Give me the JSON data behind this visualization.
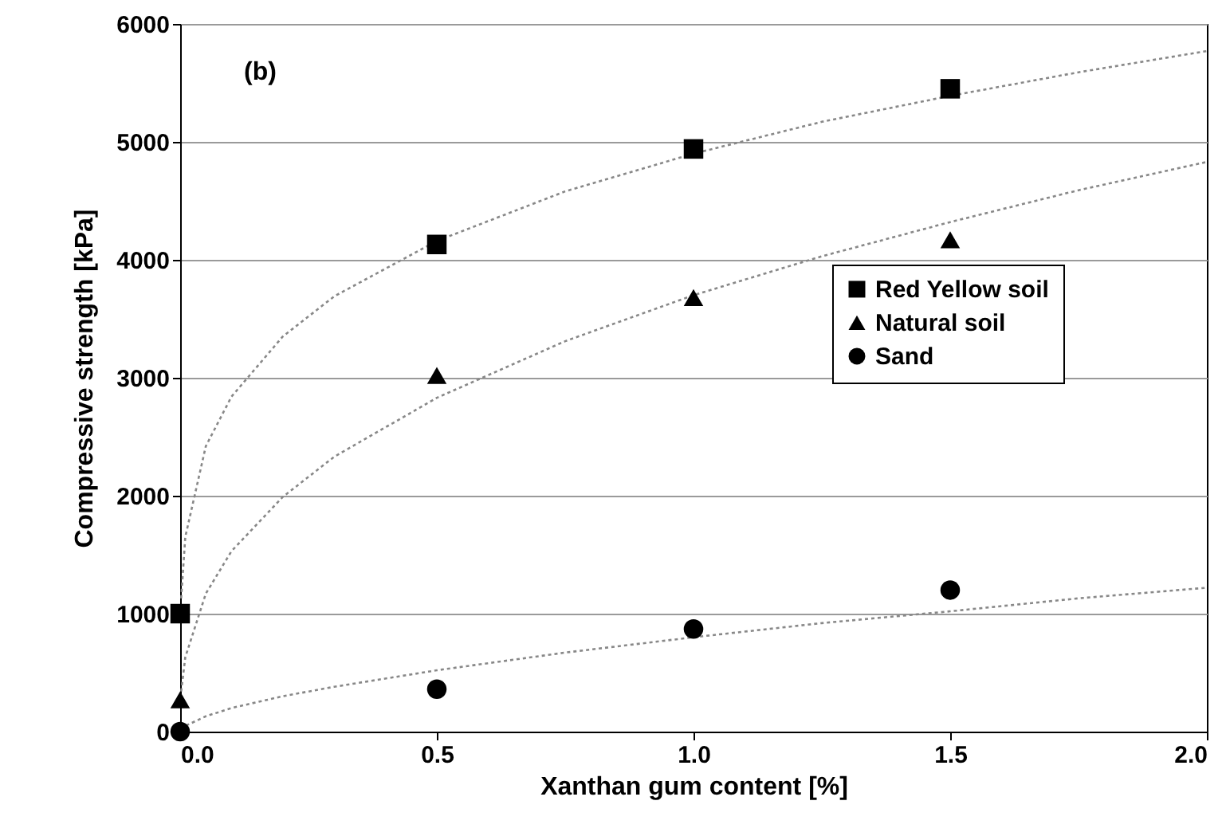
{
  "chart_data": {
    "type": "scatter",
    "xlabel": "Xanthan gum content [%]",
    "ylabel": "Compressive strength [kPa]",
    "annotations": [
      "(b)"
    ],
    "xlim": [
      0,
      2
    ],
    "xticks": [
      {
        "value": 0,
        "label": "0.0"
      },
      {
        "value": 0.5,
        "label": "0.5"
      },
      {
        "value": 1,
        "label": "1.0"
      },
      {
        "value": 1.5,
        "label": "1.5"
      },
      {
        "value": 2,
        "label": "2.0"
      }
    ],
    "ylim": [
      0,
      6000
    ],
    "yticks": [
      0,
      1000,
      2000,
      3000,
      4000,
      5000,
      6000
    ],
    "grid": "y",
    "legend": "right",
    "x": [
      0,
      0.5,
      1,
      1.5
    ],
    "series": [
      {
        "name": "Red Yellow soil",
        "color": "#000000",
        "marker": "square",
        "values": [
          1000,
          4130,
          4940,
          5450
        ]
      },
      {
        "name": "Natural soil",
        "color": "#000000",
        "marker": "triangle",
        "values": [
          270,
          3020,
          3680,
          4170
        ]
      },
      {
        "name": "Sand",
        "color": "#000000",
        "marker": "circle",
        "values": [
          0,
          360,
          870,
          1200
        ]
      },
      {
        "type": "line",
        "color": "#888888",
        "line_style": "dotted",
        "marker": "none",
        "x": [
          0.002,
          0.01,
          0.05,
          0.1,
          0.2,
          0.3,
          0.5,
          0.75,
          1,
          1.25,
          1.5,
          1.75,
          2
        ],
        "values": [
          1130,
          1650,
          2420,
          2840,
          3350,
          3690,
          4160,
          4580,
          4900,
          5170,
          5390,
          5590,
          5770
        ]
      },
      {
        "type": "line",
        "color": "#888888",
        "line_style": "dotted",
        "marker": "none",
        "x": [
          0.002,
          0.01,
          0.05,
          0.1,
          0.2,
          0.3,
          0.5,
          0.75,
          1,
          1.25,
          1.5,
          1.75,
          2
        ],
        "values": [
          340,
          630,
          1170,
          1530,
          1990,
          2330,
          2830,
          3310,
          3700,
          4030,
          4320,
          4590,
          4830
        ]
      },
      {
        "type": "line",
        "color": "#888888",
        "line_style": "dotted",
        "marker": "none",
        "x": [
          0.002,
          0.01,
          0.05,
          0.1,
          0.2,
          0.3,
          0.5,
          0.75,
          1,
          1.25,
          1.5,
          1.75,
          2
        ],
        "values": [
          18,
          48,
          130,
          200,
          300,
          380,
          520,
          670,
          800,
          920,
          1020,
          1130,
          1220
        ]
      }
    ]
  }
}
